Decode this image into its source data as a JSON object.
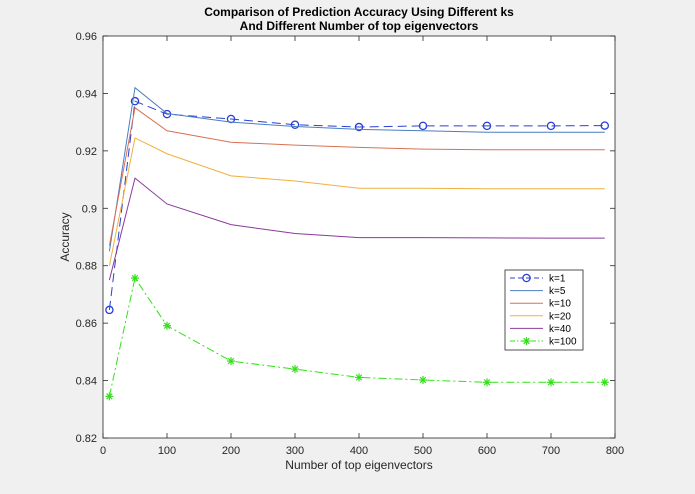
{
  "chart_data": {
    "type": "line",
    "title": [
      "Comparison of Prediction Accuracy Using Different ks",
      "And Different Number of top eigenvectors"
    ],
    "xlabel": "Number of top eigenvectors",
    "ylabel": "Accuracy",
    "xlim": [
      0,
      800
    ],
    "ylim": [
      0.82,
      0.96
    ],
    "xticks": [
      0,
      100,
      200,
      300,
      400,
      500,
      600,
      700,
      800
    ],
    "yticks": [
      0.82,
      0.84,
      0.86,
      0.88,
      0.9,
      0.92,
      0.94,
      0.96
    ],
    "ytick_labels": [
      "0.82",
      "0.84",
      "0.86",
      "0.88",
      "0.9",
      "0.92",
      "0.94",
      "0.96"
    ],
    "grid": false,
    "legend_position": "right",
    "x": [
      10,
      50,
      100,
      200,
      300,
      400,
      500,
      600,
      700,
      784
    ],
    "series": [
      {
        "name": "k=1",
        "color": "#2b3fd4",
        "dash": "dashed",
        "marker": "circle",
        "values": [
          0.8646,
          0.9373,
          0.9328,
          0.9311,
          0.9291,
          0.9283,
          0.9287,
          0.9287,
          0.9287,
          0.9288
        ]
      },
      {
        "name": "k=5",
        "color": "#4a7fc1",
        "dash": "solid",
        "marker": "none",
        "values": [
          0.885,
          0.942,
          0.933,
          0.93,
          0.9285,
          0.9275,
          0.927,
          0.9265,
          0.9265,
          0.9265
        ]
      },
      {
        "name": "k=10",
        "color": "#d97155",
        "dash": "solid",
        "marker": "none",
        "values": [
          0.887,
          0.935,
          0.927,
          0.923,
          0.922,
          0.9212,
          0.9206,
          0.9204,
          0.9204,
          0.9204
        ]
      },
      {
        "name": "k=20",
        "color": "#f0b040",
        "dash": "solid",
        "marker": "none",
        "values": [
          0.88,
          0.9245,
          0.919,
          0.9113,
          0.9095,
          0.907,
          0.907,
          0.9068,
          0.9068,
          0.9068
        ]
      },
      {
        "name": "k=40",
        "color": "#8a3a9a",
        "dash": "solid",
        "marker": "none",
        "values": [
          0.875,
          0.9105,
          0.9015,
          0.8943,
          0.8912,
          0.8898,
          0.8898,
          0.8897,
          0.8896,
          0.8896
        ]
      },
      {
        "name": "k=100",
        "color": "#33e01a",
        "dash": "dashdot",
        "marker": "asterisk",
        "values": [
          0.8345,
          0.8757,
          0.8591,
          0.8468,
          0.844,
          0.8411,
          0.8402,
          0.8394,
          0.8394,
          0.8394
        ]
      }
    ]
  }
}
